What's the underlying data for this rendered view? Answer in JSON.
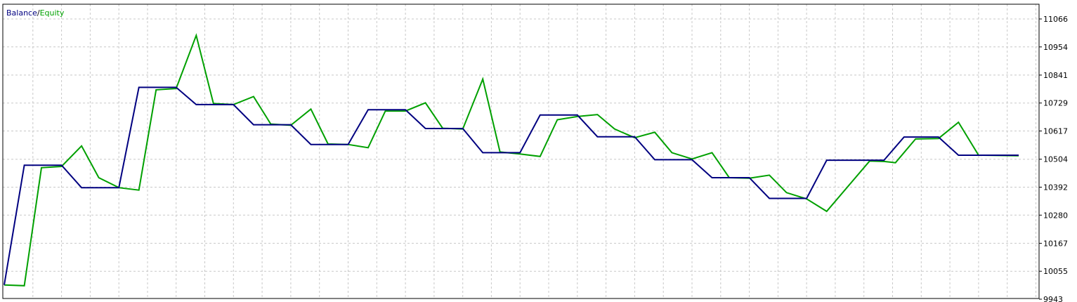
{
  "chart_data": {
    "type": "line",
    "title": "",
    "xlabel": "",
    "ylabel": "",
    "legend": {
      "position": "top-left",
      "separator": "/"
    },
    "grid": true,
    "ylim": [
      9943,
      11066
    ],
    "y_ticks": [
      {
        "value": 9943,
        "label": "9943"
      },
      {
        "value": 10055,
        "label": "10055"
      },
      {
        "value": 10167,
        "label": "10167"
      },
      {
        "value": 10280,
        "label": "10280"
      },
      {
        "value": 10392,
        "label": "10392"
      },
      {
        "value": 10504,
        "label": "10504"
      },
      {
        "value": 10617,
        "label": "10617"
      },
      {
        "value": 10729,
        "label": "10729"
      },
      {
        "value": 10841,
        "label": "10841"
      },
      {
        "value": 10954,
        "label": "10954"
      },
      {
        "value": 11066,
        "label": "11066"
      }
    ],
    "xlim": [
      0,
      36.3
    ],
    "x_grid_step": 1,
    "series": [
      {
        "name": "Balance",
        "color": "#000080",
        "points": [
          [
            0,
            10000
          ],
          [
            0.7,
            10480
          ],
          [
            2,
            10480
          ],
          [
            2.7,
            10390
          ],
          [
            4,
            10390
          ],
          [
            4.7,
            10792
          ],
          [
            6,
            10792
          ],
          [
            6.7,
            10723
          ],
          [
            8,
            10723
          ],
          [
            8.7,
            10642
          ],
          [
            10,
            10642
          ],
          [
            10.7,
            10563
          ],
          [
            12,
            10563
          ],
          [
            12.7,
            10702
          ],
          [
            14,
            10702
          ],
          [
            14.7,
            10627
          ],
          [
            16,
            10627
          ],
          [
            16.7,
            10530
          ],
          [
            18,
            10530
          ],
          [
            18.7,
            10681
          ],
          [
            20,
            10681
          ],
          [
            20.7,
            10594
          ],
          [
            22,
            10594
          ],
          [
            22.7,
            10502
          ],
          [
            24,
            10502
          ],
          [
            24.7,
            10430
          ],
          [
            26,
            10430
          ],
          [
            26.7,
            10347
          ],
          [
            28,
            10347
          ],
          [
            28.7,
            10500
          ],
          [
            30.7,
            10500
          ],
          [
            31.4,
            10593
          ],
          [
            32.6,
            10593
          ],
          [
            33.3,
            10520
          ],
          [
            35.4,
            10520
          ]
        ]
      },
      {
        "name": "Equity",
        "color": "#00a000",
        "points": [
          [
            0,
            10000
          ],
          [
            0.7,
            9997
          ],
          [
            1.3,
            10470
          ],
          [
            2,
            10475
          ],
          [
            2.7,
            10557
          ],
          [
            3.3,
            10430
          ],
          [
            4,
            10390
          ],
          [
            4.7,
            10380
          ],
          [
            5.3,
            10782
          ],
          [
            6,
            10787
          ],
          [
            6.7,
            11000
          ],
          [
            7.3,
            10727
          ],
          [
            8,
            10723
          ],
          [
            8.7,
            10755
          ],
          [
            9.3,
            10645
          ],
          [
            10,
            10640
          ],
          [
            10.7,
            10705
          ],
          [
            11.3,
            10565
          ],
          [
            12,
            10563
          ],
          [
            12.7,
            10550
          ],
          [
            13.3,
            10697
          ],
          [
            14,
            10697
          ],
          [
            14.7,
            10730
          ],
          [
            15.3,
            10628
          ],
          [
            16,
            10625
          ],
          [
            16.7,
            10825
          ],
          [
            17.3,
            10533
          ],
          [
            18,
            10525
          ],
          [
            18.7,
            10515
          ],
          [
            19.3,
            10662
          ],
          [
            20,
            10675
          ],
          [
            20.7,
            10683
          ],
          [
            21.3,
            10625
          ],
          [
            22,
            10590
          ],
          [
            22.7,
            10612
          ],
          [
            23.3,
            10530
          ],
          [
            24,
            10505
          ],
          [
            24.7,
            10530
          ],
          [
            25.3,
            10430
          ],
          [
            26,
            10428
          ],
          [
            26.7,
            10440
          ],
          [
            27.3,
            10370
          ],
          [
            28,
            10345
          ],
          [
            28.7,
            10295
          ],
          [
            30.2,
            10497
          ],
          [
            30.7,
            10495
          ],
          [
            31.1,
            10490
          ],
          [
            31.8,
            10585
          ],
          [
            32.6,
            10587
          ],
          [
            33.3,
            10652
          ],
          [
            34,
            10520
          ],
          [
            35.4,
            10518
          ]
        ]
      }
    ]
  }
}
